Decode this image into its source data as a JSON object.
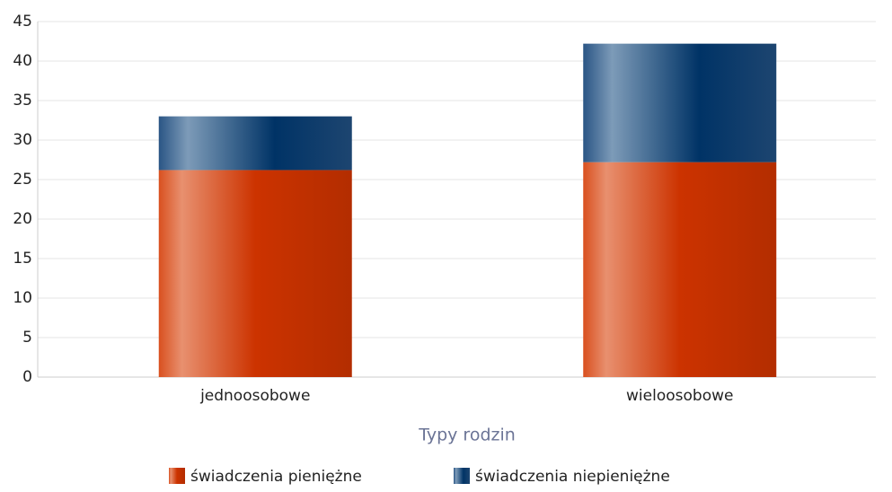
{
  "chart_data": {
    "type": "stacked_bar",
    "categories": [
      "jednoosobowe",
      "wieloosobowe"
    ],
    "series": [
      {
        "name": "świadczenia pieniężne",
        "color": "#cc3300",
        "values": [
          26.2,
          27.2
        ]
      },
      {
        "name": "świadczenia niepieniężne",
        "color": "#003366",
        "values": [
          6.8,
          15
        ]
      }
    ],
    "x_label": "Typy rodzin",
    "ylim": [
      0,
      45
    ],
    "yticks": [
      0,
      5,
      10,
      15,
      20,
      25,
      30,
      35,
      40,
      45
    ],
    "grid": true
  }
}
